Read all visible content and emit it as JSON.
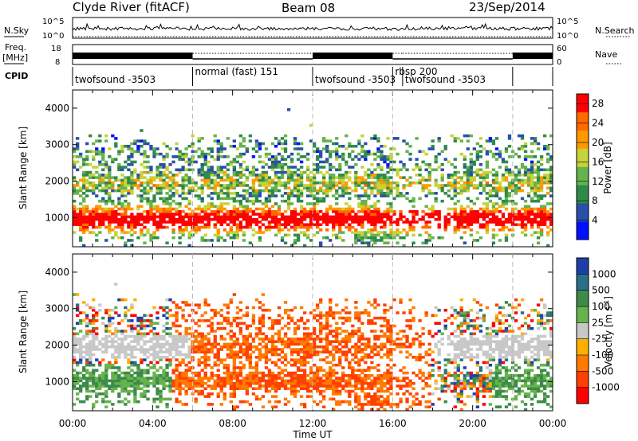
{
  "header": {
    "station": "Clyde River (fitACF)",
    "beam": "Beam 08",
    "date": "23/Sep/2014"
  },
  "status_panel": {
    "nsky_label": "N.Sky",
    "nsky_ticks": [
      "10^5",
      "10^0"
    ],
    "nsearch_label": "N.Search",
    "nsearch_ticks": [
      "10^5",
      "10^0"
    ],
    "freq_label": "Freq.",
    "freq_unit": "[MHz]",
    "freq_ticks": [
      "18",
      "8"
    ],
    "nave_label": "Nave",
    "nave_ticks": [
      "60",
      "0"
    ],
    "cpid_label": "CPID",
    "cpid_segments": [
      {
        "label": "twofsound -3503",
        "start_h": 0,
        "end_h": 6
      },
      {
        "label": "normal (fast) 151",
        "start_h": 6,
        "end_h": 12
      },
      {
        "label": "twofsound -3503",
        "start_h": 12,
        "end_h": 16
      },
      {
        "label": "rbsp 200",
        "start_h": 16,
        "end_h": 16.5
      },
      {
        "label": "twofsound -3503",
        "start_h": 16.5,
        "end_h": 22
      },
      {
        "label": "",
        "start_h": 22,
        "end_h": 24
      }
    ]
  },
  "colors": {
    "power_scale": [
      "#0010ff",
      "#2a4fa8",
      "#2f8a4a",
      "#66b34c",
      "#c8d23a",
      "#ff9a00",
      "#ff6a00",
      "#ff0000"
    ],
    "velocity_scale": [
      "#1f3fa8",
      "#2a6f8a",
      "#3d8a4a",
      "#66b34c",
      "#c8c8c8",
      "#ffb000",
      "#ff7a00",
      "#ff4000",
      "#ff0000"
    ],
    "dashed_marker": "#bbbbbb"
  },
  "chart_data": [
    {
      "type": "heatmap",
      "title": "",
      "xlabel": "",
      "ylabel": "Slant Range [km]",
      "x_range_h": [
        0,
        24
      ],
      "ylim": [
        200,
        4500
      ],
      "yticks": [
        "1000",
        "2000",
        "3000",
        "4000"
      ],
      "colorbar": {
        "label": "Power [dB]",
        "ticks": [
          "4",
          "8",
          "12",
          "16",
          "20",
          "24",
          "28"
        ],
        "range": [
          0,
          30
        ]
      },
      "grid": false
    },
    {
      "type": "heatmap",
      "title": "",
      "xlabel": "Time UT",
      "ylabel": "Slant Range [km]",
      "x_range_h": [
        0,
        24
      ],
      "xticks": [
        "00:00",
        "04:00",
        "08:00",
        "12:00",
        "16:00",
        "20:00",
        "00:00"
      ],
      "ylim": [
        200,
        4500
      ],
      "yticks": [
        "1000",
        "2000",
        "3000",
        "4000"
      ],
      "colorbar": {
        "label": "Velocity [m s",
        "label_sup": "-1",
        "label_tail": "]",
        "ticks": [
          "1000",
          "500",
          "100",
          "25",
          "-25",
          "-100",
          "-500",
          "-1000"
        ],
        "range": [
          -1000,
          1000
        ]
      },
      "grid": false
    }
  ]
}
